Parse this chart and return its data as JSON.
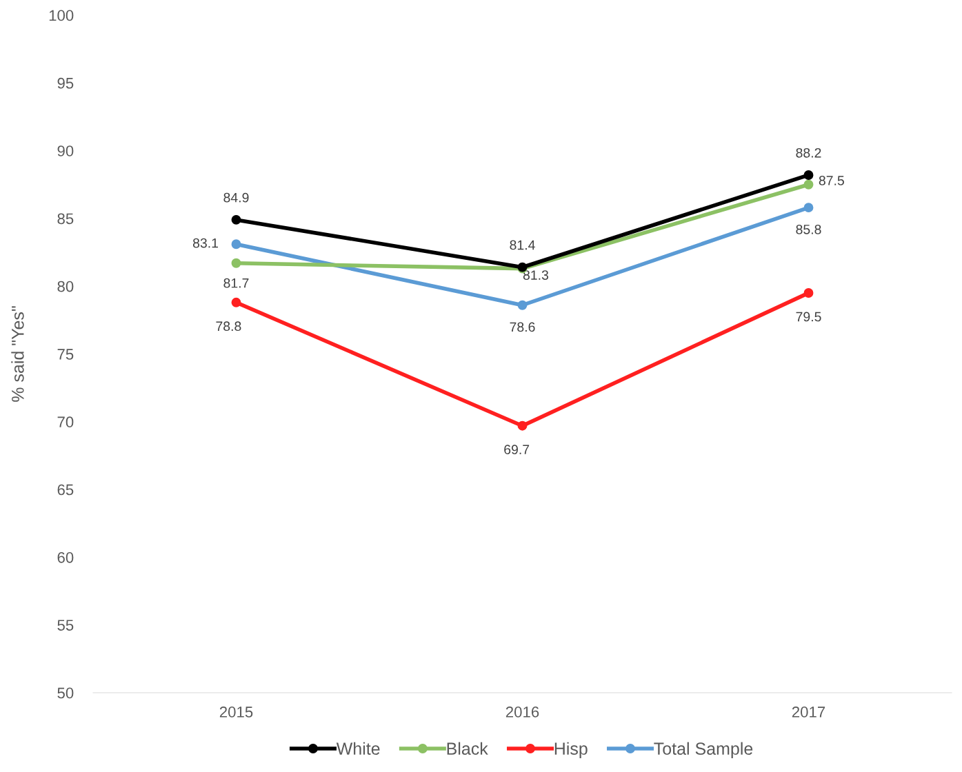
{
  "chart_data": {
    "type": "line",
    "ylabel": "% said \"Yes\"",
    "categories": [
      "2015",
      "2016",
      "2017"
    ],
    "series": [
      {
        "name": "White",
        "color": "#000000",
        "values": [
          84.9,
          81.4,
          88.2
        ]
      },
      {
        "name": "Black",
        "color": "#8cc164",
        "values": [
          81.7,
          81.3,
          87.5
        ]
      },
      {
        "name": "Hisp",
        "color": "#ff2020",
        "values": [
          78.8,
          69.7,
          79.5
        ]
      },
      {
        "name": "Total Sample",
        "color": "#5b9bd5",
        "values": [
          83.1,
          78.6,
          85.8
        ]
      }
    ],
    "ylim": [
      50,
      100
    ],
    "yticks": [
      50,
      55,
      60,
      65,
      70,
      75,
      80,
      85,
      90,
      95,
      100
    ],
    "grid": false,
    "legend": "bottom",
    "marker": "circle",
    "line_style": "solid",
    "data_labels": true
  }
}
